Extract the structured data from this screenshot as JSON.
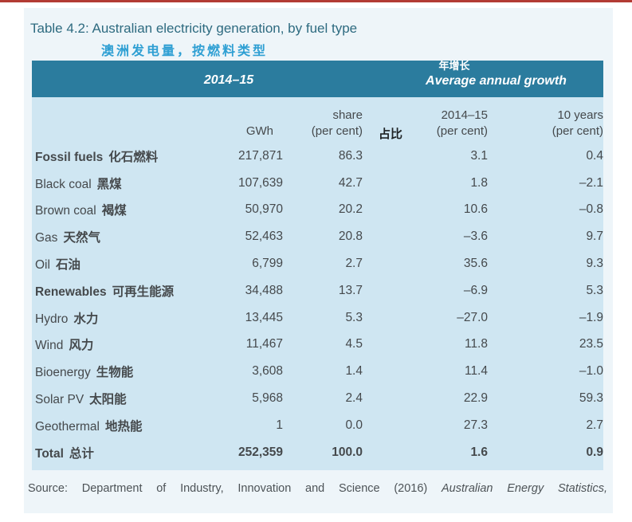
{
  "page": {
    "title": "Table 4.2: Australian electricity generation, by fuel type",
    "subtitle_zh": "澳洲发电量，按燃料类型",
    "source_prefix": "Source: Department of Industry, Innovation and Science (2016) ",
    "source_italic": "Australian Energy Statistics,"
  },
  "table": {
    "header": {
      "group1": "2014–15",
      "group2_zh": "年增长",
      "group2": "Average annual growth"
    },
    "columns": [
      {
        "line1": "",
        "line2": "GWh"
      },
      {
        "line1": "share",
        "line2": "(per cent)",
        "suffix_zh": "占比"
      },
      {
        "line1": "2014–15",
        "line2": "(per cent)"
      },
      {
        "line1": "10 years",
        "line2": "(per cent)"
      }
    ],
    "rows": [
      {
        "label": "Fossil fuels",
        "label_zh": "化石燃料",
        "gwh": "217,871",
        "share": "86.3",
        "growth_1y": "3.1",
        "growth_10y": "0.4",
        "bold_label": true
      },
      {
        "label": "Black coal",
        "label_zh": "黑煤",
        "gwh": "107,639",
        "share": "42.7",
        "growth_1y": "1.8",
        "growth_10y": "–2.1"
      },
      {
        "label": "Brown coal",
        "label_zh": "褐煤",
        "gwh": "50,970",
        "share": "20.2",
        "growth_1y": "10.6",
        "growth_10y": "–0.8"
      },
      {
        "label": "Gas",
        "label_zh": "天然气",
        "gwh": "52,463",
        "share": "20.8",
        "growth_1y": "–3.6",
        "growth_10y": "9.7"
      },
      {
        "label": "Oil",
        "label_zh": "石油",
        "gwh": "6,799",
        "share": "2.7",
        "growth_1y": "35.6",
        "growth_10y": "9.3"
      },
      {
        "label": "Renewables",
        "label_zh": "可再生能源",
        "gwh": "34,488",
        "share": "13.7",
        "growth_1y": "–6.9",
        "growth_10y": "5.3",
        "bold_label": true
      },
      {
        "label": "Hydro",
        "label_zh": "水力",
        "gwh": "13,445",
        "share": "5.3",
        "growth_1y": "–27.0",
        "growth_10y": "–1.9"
      },
      {
        "label": "Wind",
        "label_zh": "风力",
        "gwh": "11,467",
        "share": "4.5",
        "growth_1y": "11.8",
        "growth_10y": "23.5"
      },
      {
        "label": "Bioenergy",
        "label_zh": "生物能",
        "gwh": "3,608",
        "share": "1.4",
        "growth_1y": "11.4",
        "growth_10y": "–1.0"
      },
      {
        "label": "Solar PV",
        "label_zh": "太阳能",
        "gwh": "5,968",
        "share": "2.4",
        "growth_1y": "22.9",
        "growth_10y": "59.3"
      },
      {
        "label": "Geothermal",
        "label_zh": "地热能",
        "gwh": "1",
        "share": "0.0",
        "growth_1y": "27.3",
        "growth_10y": "2.7"
      },
      {
        "label": "Total",
        "label_zh": "总计",
        "gwh": "252,359",
        "share": "100.0",
        "growth_1y": "1.6",
        "growth_10y": "0.9",
        "bold_row": true
      }
    ]
  },
  "colors": {
    "topline": "#b23b34",
    "page": "#eef5f9",
    "title": "#2e6b80",
    "subtitle": "#2e9fd3",
    "bar": "#2b7c9e",
    "tablebg": "#cfe6f2"
  }
}
